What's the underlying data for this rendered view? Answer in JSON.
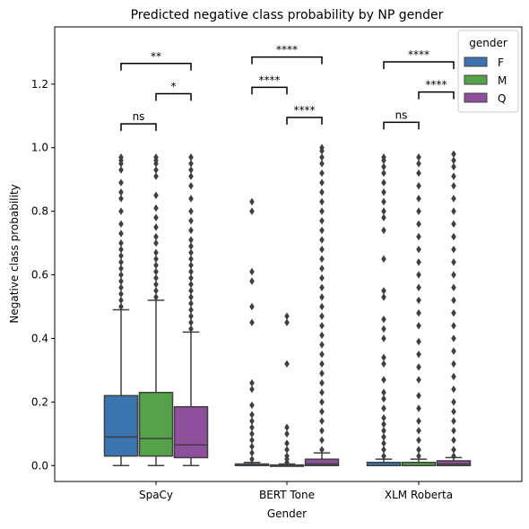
{
  "chart_data": {
    "type": "box",
    "title": "Predicted negative class probability by NP gender",
    "xlabel": "Gender",
    "ylabel": "Negative class probability",
    "categories": [
      "SpaCy",
      "BERT Tone",
      "XLM Roberta"
    ],
    "ylim": [
      -0.05,
      1.38
    ],
    "yticks": [
      0.0,
      0.2,
      0.4,
      0.6,
      0.8,
      1.0,
      1.2
    ],
    "ytick_labels": [
      "0.0",
      "0.2",
      "0.4",
      "0.6",
      "0.8",
      "1.0",
      "1.2"
    ],
    "legend": {
      "title": "gender",
      "position": "top-right"
    },
    "series": [
      {
        "name": "F",
        "color": "#3b75af",
        "boxes": [
          {
            "q1": 0.03,
            "median": 0.09,
            "q3": 0.22,
            "whisker_low": 0.0,
            "whisker_high": 0.49,
            "outliers": [
              0.5,
              0.52,
              0.54,
              0.56,
              0.58,
              0.6,
              0.62,
              0.64,
              0.66,
              0.68,
              0.7,
              0.73,
              0.76,
              0.8,
              0.84,
              0.86,
              0.89,
              0.93,
              0.95,
              0.96,
              0.97
            ]
          },
          {
            "q1": 0.0,
            "median": 0.0,
            "q3": 0.005,
            "whisker_low": 0.0,
            "whisker_high": 0.01,
            "outliers": [
              0.02,
              0.04,
              0.06,
              0.08,
              0.1,
              0.12,
              0.14,
              0.16,
              0.19,
              0.24,
              0.26,
              0.45,
              0.5,
              0.58,
              0.61,
              0.8,
              0.83
            ]
          },
          {
            "q1": 0.0,
            "median": 0.0,
            "q3": 0.01,
            "whisker_low": 0.0,
            "whisker_high": 0.02,
            "outliers": [
              0.03,
              0.05,
              0.07,
              0.09,
              0.11,
              0.13,
              0.15,
              0.18,
              0.21,
              0.23,
              0.27,
              0.32,
              0.34,
              0.4,
              0.43,
              0.46,
              0.53,
              0.55,
              0.65,
              0.74,
              0.78,
              0.8,
              0.83,
              0.86,
              0.89,
              0.92,
              0.94,
              0.96,
              0.97
            ]
          }
        ]
      },
      {
        "name": "M",
        "color": "#55a24a",
        "boxes": [
          {
            "q1": 0.03,
            "median": 0.085,
            "q3": 0.23,
            "whisker_low": 0.0,
            "whisker_high": 0.52,
            "outliers": [
              0.53,
              0.55,
              0.57,
              0.59,
              0.61,
              0.63,
              0.65,
              0.67,
              0.7,
              0.72,
              0.75,
              0.78,
              0.81,
              0.85,
              0.91,
              0.93,
              0.95,
              0.96,
              0.97
            ]
          },
          {
            "q1": 0.0,
            "median": 0.0,
            "q3": 0.002,
            "whisker_low": 0.0,
            "whisker_high": 0.005,
            "outliers": [
              0.01,
              0.02,
              0.03,
              0.05,
              0.07,
              0.1,
              0.12,
              0.32,
              0.45,
              0.47
            ]
          },
          {
            "q1": 0.0,
            "median": 0.0,
            "q3": 0.01,
            "whisker_low": 0.0,
            "whisker_high": 0.02,
            "outliers": [
              0.03,
              0.05,
              0.08,
              0.11,
              0.14,
              0.18,
              0.22,
              0.27,
              0.31,
              0.35,
              0.39,
              0.44,
              0.48,
              0.52,
              0.56,
              0.6,
              0.64,
              0.68,
              0.72,
              0.76,
              0.8,
              0.84,
              0.88,
              0.92,
              0.95,
              0.97
            ]
          }
        ]
      },
      {
        "name": "Q",
        "color": "#8e4f9d",
        "boxes": [
          {
            "q1": 0.025,
            "median": 0.065,
            "q3": 0.185,
            "whisker_low": 0.0,
            "whisker_high": 0.42,
            "outliers": [
              0.43,
              0.45,
              0.47,
              0.49,
              0.51,
              0.53,
              0.55,
              0.57,
              0.59,
              0.61,
              0.63,
              0.65,
              0.67,
              0.69,
              0.71,
              0.74,
              0.77,
              0.8,
              0.84,
              0.88,
              0.91,
              0.93,
              0.95,
              0.97
            ]
          },
          {
            "q1": 0.0,
            "median": 0.005,
            "q3": 0.02,
            "whisker_low": 0.0,
            "whisker_high": 0.04,
            "outliers": [
              0.05,
              0.08,
              0.11,
              0.14,
              0.17,
              0.2,
              0.23,
              0.26,
              0.29,
              0.32,
              0.35,
              0.38,
              0.41,
              0.44,
              0.47,
              0.5,
              0.53,
              0.56,
              0.59,
              0.62,
              0.65,
              0.68,
              0.71,
              0.74,
              0.77,
              0.8,
              0.83,
              0.86,
              0.89,
              0.92,
              0.95,
              0.97,
              0.99,
              1.0
            ]
          },
          {
            "q1": 0.0,
            "median": 0.005,
            "q3": 0.015,
            "whisker_low": 0.0,
            "whisker_high": 0.025,
            "outliers": [
              0.03,
              0.05,
              0.08,
              0.11,
              0.14,
              0.17,
              0.2,
              0.24,
              0.28,
              0.32,
              0.36,
              0.4,
              0.44,
              0.48,
              0.52,
              0.56,
              0.6,
              0.64,
              0.68,
              0.72,
              0.76,
              0.8,
              0.84,
              0.88,
              0.91,
              0.94,
              0.96,
              0.98
            ]
          }
        ]
      }
    ],
    "annotations": [
      {
        "category": 0,
        "from": "F",
        "to": "M",
        "y": 1.075,
        "label": "ns"
      },
      {
        "category": 0,
        "from": "M",
        "to": "Q",
        "y": 1.17,
        "label": "*"
      },
      {
        "category": 0,
        "from": "F",
        "to": "Q",
        "y": 1.265,
        "label": "**"
      },
      {
        "category": 1,
        "from": "F",
        "to": "M",
        "y": 1.19,
        "label": "****"
      },
      {
        "category": 1,
        "from": "M",
        "to": "Q",
        "y": 1.095,
        "label": "****"
      },
      {
        "category": 1,
        "from": "F",
        "to": "Q",
        "y": 1.285,
        "label": "****"
      },
      {
        "category": 2,
        "from": "F",
        "to": "M",
        "y": 1.08,
        "label": "ns"
      },
      {
        "category": 2,
        "from": "M",
        "to": "Q",
        "y": 1.175,
        "label": "****"
      },
      {
        "category": 2,
        "from": "F",
        "to": "Q",
        "y": 1.27,
        "label": "****"
      }
    ]
  }
}
